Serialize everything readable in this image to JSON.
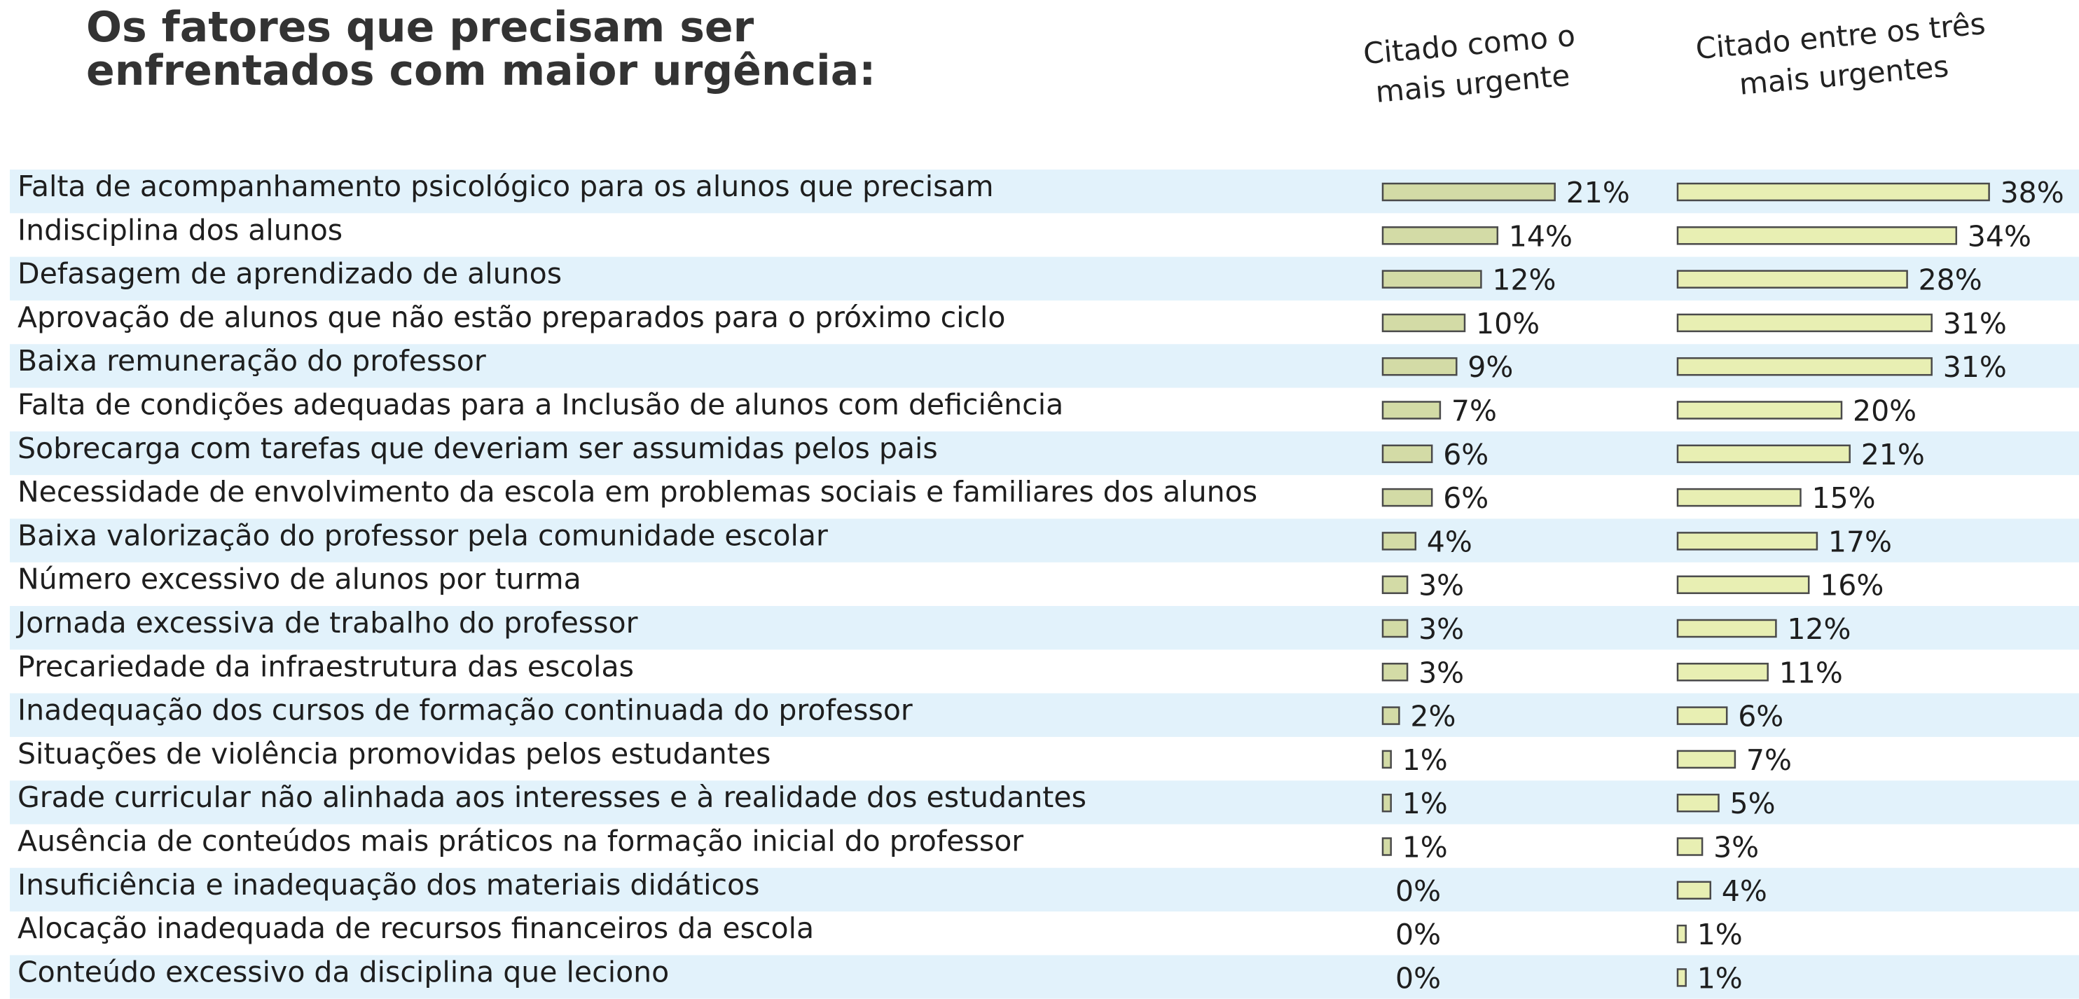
{
  "chart_data": {
    "type": "bar",
    "title": "Os fatores que precisam ser enfrentados com maior urgência:",
    "categories": [
      "Falta de acompanhamento psicológico para os alunos que precisam",
      "Indisciplina dos alunos",
      "Defasagem de aprendizado de alunos",
      "Aprovação de alunos que não estão preparados para o próximo ciclo",
      "Baixa remuneração do professor",
      "Falta de condições adequadas para a Inclusão de alunos com deficiência",
      "Sobrecarga com tarefas que deveriam ser assumidas pelos pais",
      "Necessidade de envolvimento da escola em problemas sociais e familiares dos alunos",
      "Baixa valorização do professor pela comunidade  escolar",
      "Número excessivo de alunos por turma",
      "Jornada excessiva de trabalho do professor",
      "Precariedade da infraestrutura das escolas",
      "Inadequação dos cursos de formação continuada do professor",
      "Situações de violência promovidas pelos estudantes",
      "Grade curricular não alinhada aos interesses e à realidade dos estudantes",
      "Ausência de conteúdos mais práticos na formação inicial do professor",
      "Insuficiência e inadequação dos materiais didáticos",
      "Alocação inadequada de recursos financeiros da escola",
      "Conteúdo excessivo da disciplina que leciono"
    ],
    "series": [
      {
        "name": "Citado como o mais urgente",
        "color": "#d3dba6",
        "values": [
          21,
          14,
          12,
          10,
          9,
          7,
          6,
          6,
          4,
          3,
          3,
          3,
          2,
          1,
          1,
          1,
          0,
          0,
          0
        ],
        "value_labels": [
          "21%",
          "14%",
          "12%",
          "10%",
          "9%",
          "7%",
          "6%",
          "6%",
          "4%",
          "3%",
          "3%",
          "3%",
          "2%",
          "1%",
          "1%",
          "1%",
          "0%",
          "0%",
          "0%"
        ]
      },
      {
        "name": "Citado entre os três mais urgentes",
        "color": "#e8efb3",
        "values": [
          38,
          34,
          28,
          31,
          31,
          20,
          21,
          15,
          17,
          16,
          12,
          11,
          6,
          7,
          5,
          3,
          4,
          1,
          1
        ],
        "value_labels": [
          "38%",
          "34%",
          "28%",
          "31%",
          "31%",
          "20%",
          "21%",
          "15%",
          "17%",
          "16%",
          "12%",
          "11%",
          "6%",
          "7%",
          "5%",
          "3%",
          "4%",
          "1%",
          "1%"
        ]
      }
    ]
  }
}
